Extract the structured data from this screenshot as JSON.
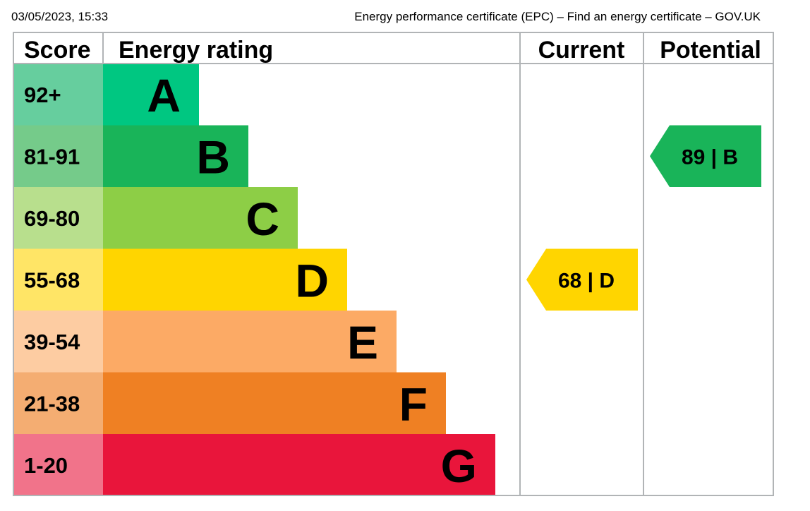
{
  "header": {
    "timestamp": "03/05/2023, 15:33",
    "page_title": "Energy performance certificate (EPC) – Find an energy certificate – GOV.UK"
  },
  "table": {
    "col_score": "Score",
    "col_rating": "Energy rating",
    "col_current": "Current",
    "col_potential": "Potential"
  },
  "chart_data": {
    "type": "bar",
    "bands": [
      {
        "score": "92+",
        "letter": "A",
        "color": "#00c781",
        "score_bg": "#66ce9e"
      },
      {
        "score": "81-91",
        "letter": "B",
        "color": "#19b459",
        "score_bg": "#75cb8a"
      },
      {
        "score": "69-80",
        "letter": "C",
        "color": "#8dce46",
        "score_bg": "#b8df8d"
      },
      {
        "score": "55-68",
        "letter": "D",
        "color": "#ffd500",
        "score_bg": "#ffe566"
      },
      {
        "score": "39-54",
        "letter": "E",
        "color": "#fcaa65",
        "score_bg": "#fdcca2"
      },
      {
        "score": "21-38",
        "letter": "F",
        "color": "#ef8023",
        "score_bg": "#f4ad72"
      },
      {
        "score": "1-20",
        "letter": "G",
        "color": "#e9153b",
        "score_bg": "#f1738a"
      }
    ],
    "current": {
      "value": 68,
      "band": "D",
      "label": "68 | D",
      "color": "#ffd500"
    },
    "potential": {
      "value": 89,
      "band": "B",
      "label": "89 | B",
      "color": "#19b459"
    }
  }
}
